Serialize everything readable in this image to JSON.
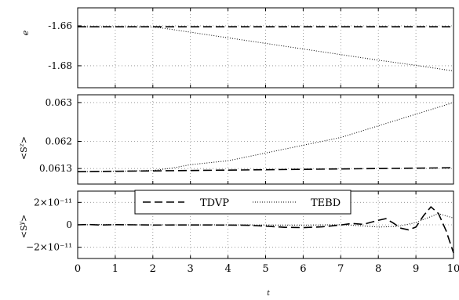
{
  "chart_data": [
    {
      "type": "line",
      "xlim": [
        0,
        10
      ],
      "ylim": [
        -1.691,
        -1.651
      ],
      "ylabel": "e",
      "grid": true,
      "x_ticks": [
        0,
        1,
        2,
        3,
        4,
        5,
        6,
        7,
        8,
        9,
        10
      ],
      "y_ticks": [
        {
          "value": -1.66,
          "label": "-1.66"
        },
        {
          "value": -1.68,
          "label": "-1.68"
        }
      ],
      "series": [
        {
          "name": "TDVP",
          "style": "dashed",
          "x": [
            0,
            10
          ],
          "y": [
            -1.6605,
            -1.6605
          ]
        },
        {
          "name": "TEBD",
          "style": "dotted",
          "x": [
            0,
            1,
            2,
            2.2,
            2.5,
            3,
            4,
            5,
            6,
            7,
            8,
            9,
            10
          ],
          "y": [
            -1.6605,
            -1.6605,
            -1.6606,
            -1.661,
            -1.6618,
            -1.6632,
            -1.666,
            -1.6688,
            -1.6716,
            -1.6744,
            -1.6772,
            -1.6798,
            -1.6826
          ]
        }
      ]
    },
    {
      "type": "line",
      "xlim": [
        0,
        10
      ],
      "ylim": [
        0.0609,
        0.0632
      ],
      "ylabel": "<S^z>",
      "grid": true,
      "x_ticks": [
        0,
        1,
        2,
        3,
        4,
        5,
        6,
        7,
        8,
        9,
        10
      ],
      "y_ticks": [
        {
          "value": 0.063,
          "label": "0.063"
        },
        {
          "value": 0.062,
          "label": "0.062"
        },
        {
          "value": 0.0613,
          "label": "0.0613"
        }
      ],
      "series": [
        {
          "name": "TDVP",
          "style": "dashed",
          "x": [
            0,
            2,
            4,
            6,
            8,
            10
          ],
          "y": [
            0.06122,
            0.06124,
            0.06126,
            0.06128,
            0.0613,
            0.06132
          ]
        },
        {
          "name": "TEBD",
          "style": "dotted",
          "x": [
            0,
            1,
            2,
            2.5,
            3,
            4,
            5,
            6,
            7,
            8,
            9,
            10
          ],
          "y": [
            0.06122,
            0.06123,
            0.06125,
            0.06131,
            0.0614,
            0.0615,
            0.0617,
            0.0619,
            0.0621,
            0.0624,
            0.0627,
            0.063
          ]
        }
      ]
    },
    {
      "type": "line",
      "xlim": [
        0,
        10
      ],
      "ylim": [
        -3e-11,
        3e-11
      ],
      "xlabel": "t",
      "ylabel": "<S^y>",
      "grid": true,
      "x_ticks": [
        0,
        1,
        2,
        3,
        4,
        5,
        6,
        7,
        8,
        9,
        10
      ],
      "y_ticks": [
        {
          "value": 2e-11,
          "label": "2×10⁻¹¹"
        },
        {
          "value": 0,
          "label": "0"
        },
        {
          "value": -2e-11,
          "label": "−2×10⁻¹¹"
        }
      ],
      "legend": {
        "placement": "top",
        "entries": [
          {
            "label": "TDVP",
            "style": "dashed"
          },
          {
            "label": "TEBD",
            "style": "dotted"
          }
        ]
      },
      "series": [
        {
          "name": "TDVP",
          "style": "dashed",
          "x": [
            0,
            0.3,
            0.6,
            1,
            1.5,
            2,
            3,
            4,
            4.5,
            5,
            5.5,
            6,
            6.5,
            7,
            7.3,
            7.6,
            8,
            8.2,
            8.4,
            8.6,
            8.8,
            9,
            9.2,
            9.4,
            9.6,
            9.8,
            10
          ],
          "y": [
            0,
            3e-13,
            -2e-13,
            1e-13,
            0,
            -2e-13,
            -1e-13,
            -2e-13,
            -4e-13,
            -1.2e-12,
            -2.2e-12,
            -2.5e-12,
            -1.8e-12,
            -2e-13,
            1.2e-12,
            4e-13,
            4e-12,
            5.5e-12,
            1.5e-12,
            -3e-12,
            -4.5e-12,
            -2e-12,
            8e-12,
            1.6e-11,
            1e-11,
            -5e-12,
            -2.5e-11
          ]
        },
        {
          "name": "TEBD",
          "style": "dotted",
          "x": [
            0,
            0.5,
            1,
            2,
            3,
            4,
            5,
            6,
            7,
            7.5,
            8,
            8.5,
            9,
            9.3,
            9.6,
            9.8,
            10
          ],
          "y": [
            0,
            2e-13,
            1e-13,
            0,
            -1e-13,
            0,
            -2e-13,
            -3e-13,
            1e-13,
            -8e-13,
            -2e-12,
            -1.5e-12,
            2e-12,
            6e-12,
            1e-11,
            8e-12,
            6e-12
          ]
        }
      ]
    }
  ],
  "x_axis": {
    "tick_labels": [
      "0",
      "1",
      "2",
      "3",
      "4",
      "5",
      "6",
      "7",
      "8",
      "9",
      "10"
    ],
    "label": "t"
  },
  "legend": {
    "tdvp_label": "TDVP",
    "tebd_label": "TEBD"
  },
  "ylabels": {
    "e": "e",
    "sz_base": "<S",
    "sz_sup": "z",
    "sy_base": "<S",
    "sy_sup": "y",
    "close": ">"
  },
  "colors": {
    "line": "#000000",
    "grid": "#888888",
    "background": "#ffffff"
  }
}
